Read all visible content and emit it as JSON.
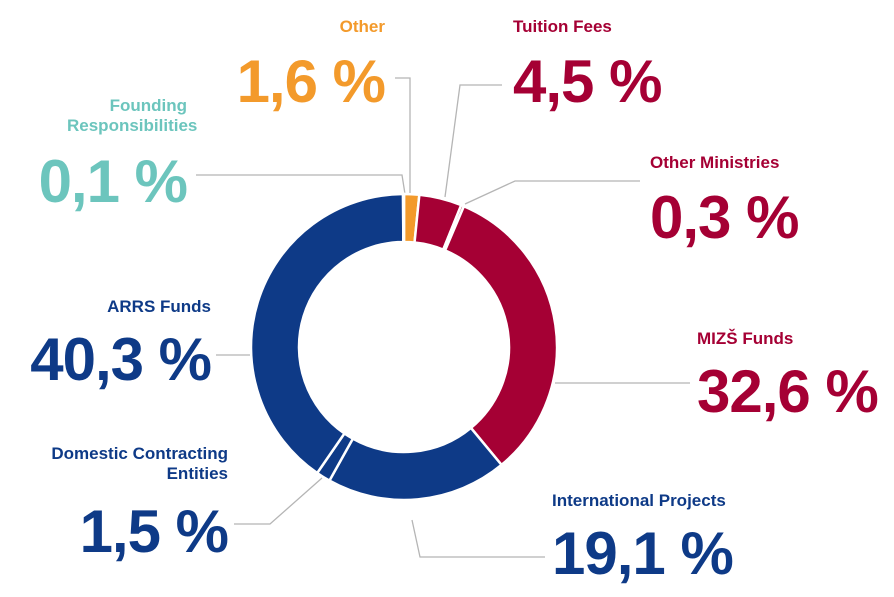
{
  "chart_data": {
    "type": "donut",
    "categories": [
      "Other",
      "Tuition Fees",
      "Other Ministries",
      "MIZŠ Funds",
      "International Projects",
      "Domestic Contracting Entities",
      "ARRS Funds",
      "Founding Responsibilities"
    ],
    "values": [
      1.6,
      4.5,
      0.3,
      32.6,
      19.1,
      1.5,
      40.3,
      0.1
    ],
    "value_labels": [
      "1,6 %",
      "4,5 %",
      "0,3 %",
      "32,6 %",
      "19,1 %",
      "1,5 %",
      "40,3 %",
      "0,1 %"
    ],
    "colors": [
      "#f39a2b",
      "#a50034",
      "#a50034",
      "#a50034",
      "#0e3a87",
      "#0e3a87",
      "#0e3a87",
      "#6cc5bd"
    ]
  }
}
